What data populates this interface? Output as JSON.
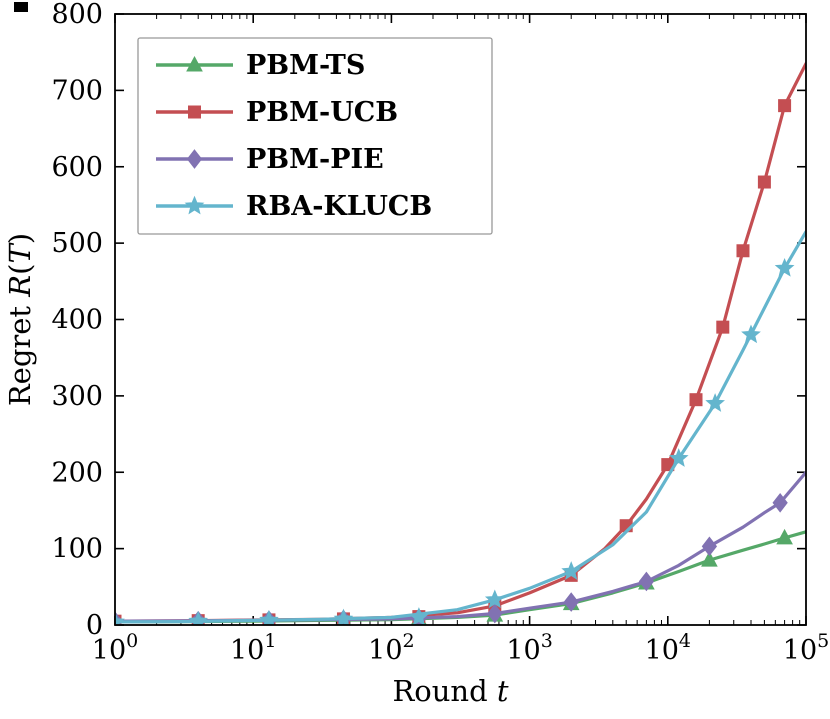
{
  "chart_data": {
    "type": "line",
    "title": "",
    "x_scale": "log",
    "x_exponent_range": [
      0,
      5
    ],
    "ylim": [
      0,
      800
    ],
    "y_ticks": [
      0,
      100,
      200,
      300,
      400,
      500,
      600,
      700,
      800
    ],
    "x_tick_exponents": [
      0,
      1,
      2,
      3,
      4,
      5
    ],
    "xlabel": "Round t",
    "ylabel": "Regret R(T)",
    "xlabel_parts": [
      {
        "text": "Round ",
        "italic": false
      },
      {
        "text": "t",
        "italic": true
      }
    ],
    "ylabel_parts": [
      {
        "text": "Regret ",
        "italic": false
      },
      {
        "text": "R",
        "italic": true
      },
      {
        "text": "(",
        "italic": false
      },
      {
        "text": "T",
        "italic": true
      },
      {
        "text": ")",
        "italic": false
      }
    ],
    "legend_position": "upper-left",
    "grid": false,
    "series": [
      {
        "name": "PBM-TS",
        "color": "#55a868",
        "marker": "triangle",
        "x": [
          1,
          3,
          10,
          30,
          100,
          300,
          560,
          1000,
          2000,
          4000,
          7000,
          12000,
          20000,
          35000,
          50000,
          70000,
          100000
        ],
        "y": [
          4,
          4.5,
          5,
          6,
          7,
          10,
          13,
          20,
          28,
          42,
          55,
          70,
          85,
          98,
          106,
          114,
          122
        ],
        "marker_x": [
          1,
          4,
          13,
          45,
          158,
          560,
          2000,
          7000,
          20000,
          70000
        ],
        "marker_y": [
          4,
          4.6,
          5.2,
          6.3,
          7.8,
          13,
          28,
          55,
          85,
          114
        ]
      },
      {
        "name": "PBM-UCB",
        "color": "#c44e52",
        "marker": "square",
        "x": [
          1,
          3,
          10,
          30,
          100,
          300,
          560,
          1000,
          2000,
          3500,
          5000,
          7000,
          10000,
          16000,
          25000,
          35000,
          50000,
          70000,
          100000
        ],
        "y": [
          5,
          5.5,
          6.5,
          7.5,
          10,
          16,
          25,
          42,
          65,
          100,
          130,
          165,
          210,
          295,
          390,
          490,
          580,
          680,
          735
        ],
        "marker_x": [
          1,
          4,
          13,
          45,
          158,
          560,
          2000,
          5000,
          10000,
          16000,
          25000,
          35000,
          50000,
          70000
        ],
        "marker_y": [
          5,
          5.7,
          6.7,
          8,
          11,
          25,
          65,
          130,
          210,
          295,
          390,
          490,
          580,
          680
        ]
      },
      {
        "name": "PBM-PIE",
        "color": "#8172b2",
        "marker": "diamond",
        "x": [
          1,
          3,
          10,
          30,
          100,
          300,
          560,
          1000,
          2000,
          4000,
          7000,
          12000,
          20000,
          35000,
          50000,
          65000,
          100000
        ],
        "y": [
          5,
          5.5,
          6,
          7,
          8,
          11,
          15,
          22,
          30,
          44,
          57,
          78,
          103,
          128,
          147,
          160,
          200
        ],
        "marker_x": [
          1,
          4,
          13,
          45,
          158,
          560,
          2000,
          7000,
          20000,
          65000
        ],
        "marker_y": [
          5,
          5.6,
          6.3,
          7.3,
          8.8,
          15,
          30,
          57,
          103,
          160
        ]
      },
      {
        "name": "RBA-KLUCB",
        "color": "#64b5cd",
        "marker": "star",
        "x": [
          1,
          3,
          10,
          30,
          100,
          300,
          560,
          1000,
          2000,
          4000,
          7000,
          12000,
          22000,
          35000,
          50000,
          70000,
          100000
        ],
        "y": [
          4,
          4.5,
          6,
          7.5,
          10,
          20,
          33,
          48,
          70,
          105,
          148,
          218,
          290,
          360,
          415,
          467,
          515
        ],
        "marker_x": [
          1,
          4,
          13,
          45,
          158,
          560,
          2000,
          12000,
          22000,
          40000,
          70000
        ],
        "marker_y": [
          4,
          5,
          6.3,
          7.8,
          10,
          33,
          70,
          218,
          290,
          380,
          467
        ]
      }
    ]
  }
}
